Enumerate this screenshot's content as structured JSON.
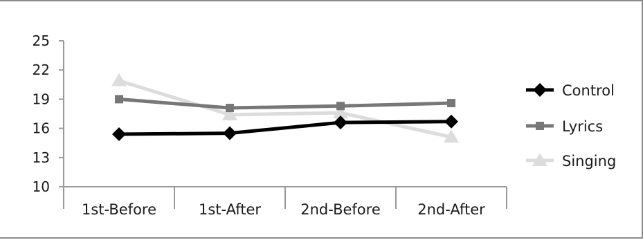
{
  "chart_data": {
    "type": "line",
    "title": "",
    "xlabel": "",
    "ylabel": "",
    "categories": [
      "1st-Before",
      "1st-After",
      "2nd-Before",
      "2nd-After"
    ],
    "ylim": [
      10,
      25
    ],
    "yticks": [
      "25",
      "22",
      "19",
      "16",
      "13",
      "10"
    ],
    "grid": false,
    "legend": "right",
    "series": [
      {
        "name": "Control",
        "values": [
          15.4,
          15.5,
          16.6,
          16.7
        ],
        "color": "#000000",
        "marker": "diamond"
      },
      {
        "name": "Lyrics",
        "values": [
          19.0,
          18.1,
          18.3,
          18.6
        ],
        "color": "#777777",
        "marker": "square"
      },
      {
        "name": "Singing",
        "values": [
          20.9,
          17.4,
          17.6,
          15.1
        ],
        "color": "#dcdcdc",
        "marker": "triangle"
      }
    ]
  }
}
